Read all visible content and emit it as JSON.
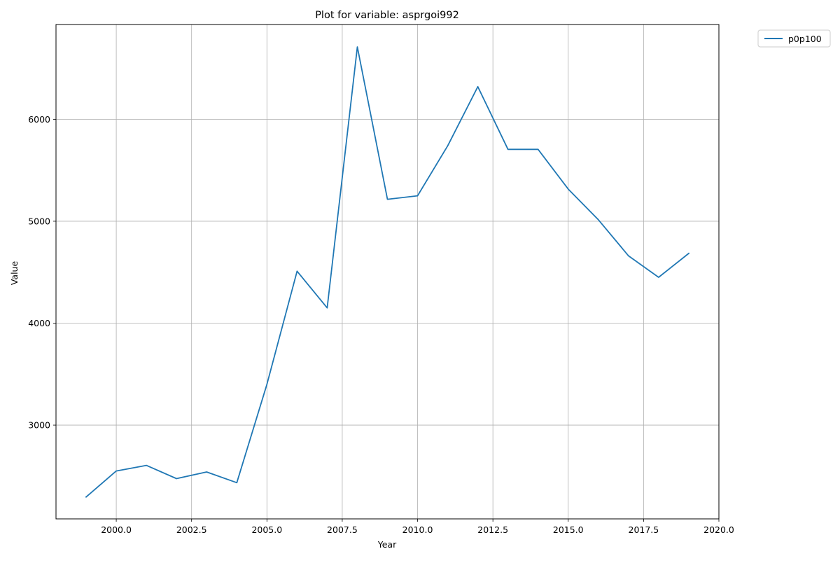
{
  "chart_data": {
    "type": "line",
    "title": "Plot for variable: asprgoi992",
    "xlabel": "Year",
    "ylabel": "Value",
    "xlim": [
      1998.0,
      2020.0
    ],
    "ylim": [
      2080,
      6930
    ],
    "x_ticks": [
      2000.0,
      2002.5,
      2005.0,
      2007.5,
      2010.0,
      2012.5,
      2015.0,
      2017.5,
      2020.0
    ],
    "x_tick_labels": [
      "2000.0",
      "2002.5",
      "2005.0",
      "2007.5",
      "2010.0",
      "2012.5",
      "2015.0",
      "2017.5",
      "2020.0"
    ],
    "y_ticks": [
      3000,
      4000,
      5000,
      6000
    ],
    "y_tick_labels": [
      "3000",
      "4000",
      "5000",
      "6000"
    ],
    "grid": true,
    "legend_position": "outside-top-right",
    "series": [
      {
        "name": "p0p100",
        "color": "#1f77b4",
        "x": [
          1999,
          2000,
          2001,
          2002,
          2003,
          2004,
          2005,
          2006,
          2007,
          2008,
          2009,
          2010,
          2011,
          2012,
          2013,
          2014,
          2015,
          2016,
          2017,
          2018,
          2019
        ],
        "y": [
          2295,
          2550,
          2605,
          2475,
          2540,
          2435,
          3400,
          4510,
          4150,
          6710,
          5215,
          5250,
          5740,
          6320,
          5705,
          5705,
          5315,
          5015,
          4660,
          4450,
          4685
        ]
      }
    ]
  }
}
